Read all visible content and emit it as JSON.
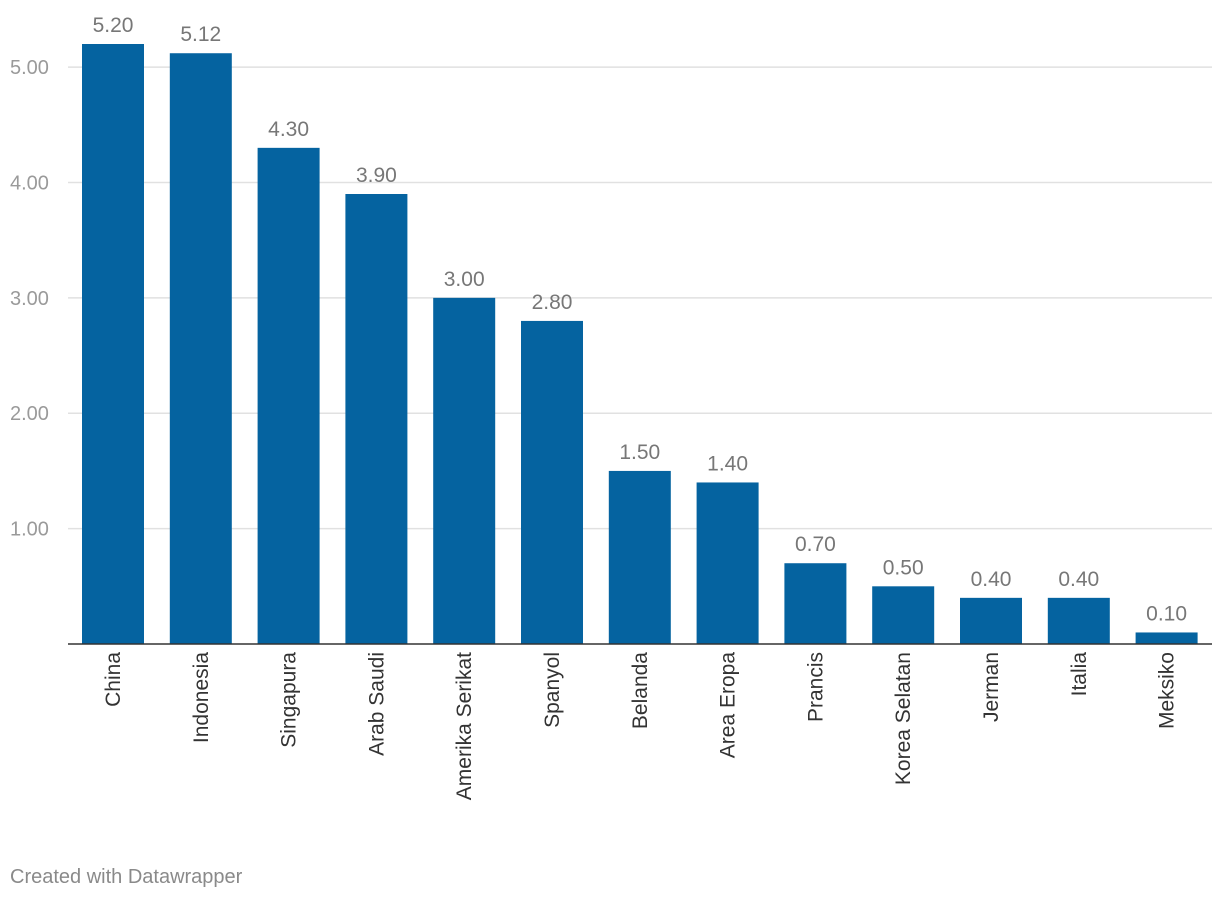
{
  "chart_data": {
    "type": "bar",
    "categories": [
      "China",
      "Indonesia",
      "Singapura",
      "Arab Saudi",
      "Amerika Serikat",
      "Spanyol",
      "Belanda",
      "Area Eropa",
      "Prancis",
      "Korea Selatan",
      "Jerman",
      "Italia",
      "Meksiko"
    ],
    "values": [
      5.2,
      5.12,
      4.3,
      3.9,
      3.0,
      2.8,
      1.5,
      1.4,
      0.7,
      0.5,
      0.4,
      0.4,
      0.1
    ],
    "value_labels": [
      "5.20",
      "5.12",
      "4.30",
      "3.90",
      "3.00",
      "2.80",
      "1.50",
      "1.40",
      "0.70",
      "0.50",
      "0.40",
      "0.40",
      "0.10"
    ],
    "y_ticks": [
      1,
      2,
      3,
      4,
      5
    ],
    "y_tick_labels": [
      "1.00",
      "2.00",
      "3.00",
      "4.00",
      "5.00"
    ],
    "ylim": [
      0,
      5.2
    ],
    "grid": true,
    "bar_color": "#0563a0",
    "title": "",
    "xlabel": "",
    "ylabel": ""
  },
  "credit": "Created with Datawrapper"
}
